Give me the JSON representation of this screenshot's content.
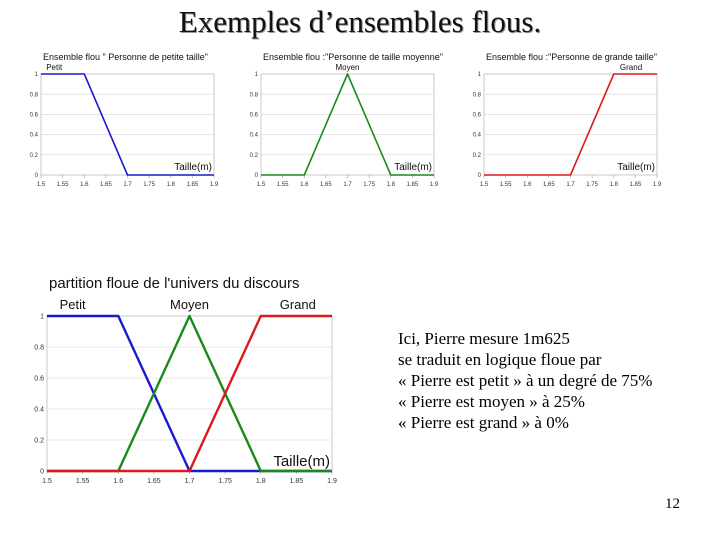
{
  "slide": {
    "title": "Exemples d’ensembles  flous.",
    "number": "12"
  },
  "explanation": {
    "lines": [
      "Ici, Pierre mesure 1m625",
      "se traduit en logique floue par",
      "« Pierre est petit » à un degré de 75%",
      "« Pierre est moyen » à 25%",
      "« Pierre est grand » à 0%"
    ]
  },
  "chart_data": [
    {
      "type": "line",
      "title": "Ensemble flou \" Personne de petite taille\"",
      "xlabel": "Taille(m)",
      "x_ticks": [
        "1.5",
        "1.55",
        "1.6",
        "1.65",
        "1.7",
        "1.75",
        "1.8",
        "1.85",
        "1.9"
      ],
      "y_ticks": [
        "0",
        "0.2",
        "0.4",
        "0.6",
        "0.8",
        "1"
      ],
      "xlim": [
        1.5,
        1.9
      ],
      "ylim": [
        0,
        1
      ],
      "series": [
        {
          "name": "Petit",
          "color": "#1a1acc",
          "x": [
            1.5,
            1.6,
            1.7,
            1.9
          ],
          "y": [
            1,
            1,
            0,
            0
          ]
        }
      ]
    },
    {
      "type": "line",
      "title": "Ensemble flou :\"Personne de taille moyenne\"",
      "xlabel": "Taille(m)",
      "x_ticks": [
        "1.5",
        "1.55",
        "1.6",
        "1.65",
        "1.7",
        "1.75",
        "1.8",
        "1.85",
        "1.9"
      ],
      "y_ticks": [
        "0",
        "0.2",
        "0.4",
        "0.6",
        "0.8",
        "1"
      ],
      "xlim": [
        1.5,
        1.9
      ],
      "ylim": [
        0,
        1
      ],
      "series": [
        {
          "name": "Moyen",
          "color": "#1a8a1a",
          "x": [
            1.5,
            1.6,
            1.7,
            1.8,
            1.9
          ],
          "y": [
            0,
            0,
            1,
            0,
            0
          ]
        }
      ]
    },
    {
      "type": "line",
      "title": "Ensemble flou :\"Personne de grande taille\"",
      "xlabel": "Taille(m)",
      "x_ticks": [
        "1.5",
        "1.55",
        "1.6",
        "1.65",
        "1.7",
        "1.75",
        "1.8",
        "1.85",
        "1.9"
      ],
      "y_ticks": [
        "0",
        "0.2",
        "0.4",
        "0.6",
        "0.8",
        "1"
      ],
      "xlim": [
        1.5,
        1.9
      ],
      "ylim": [
        0,
        1
      ],
      "series": [
        {
          "name": "Grand",
          "color": "#dd1a1a",
          "x": [
            1.5,
            1.7,
            1.8,
            1.9
          ],
          "y": [
            0,
            0,
            1,
            1
          ]
        }
      ]
    },
    {
      "type": "line",
      "title": "partition floue de l'univers du discours",
      "xlabel": "Taille(m)",
      "x_ticks": [
        "1.5",
        "1.55",
        "1.6",
        "1.65",
        "1.7",
        "1.75",
        "1.8",
        "1.85",
        "1.9"
      ],
      "y_ticks": [
        "0",
        "0.2",
        "0.4",
        "0.6",
        "0.8",
        "1"
      ],
      "xlim": [
        1.5,
        1.9
      ],
      "ylim": [
        0,
        1
      ],
      "series": [
        {
          "name": "Petit",
          "color": "#1a1acc",
          "x": [
            1.5,
            1.6,
            1.7,
            1.9
          ],
          "y": [
            1,
            1,
            0,
            0
          ]
        },
        {
          "name": "Moyen",
          "color": "#1a8a1a",
          "x": [
            1.5,
            1.6,
            1.7,
            1.8,
            1.9
          ],
          "y": [
            0,
            0,
            1,
            0,
            0
          ]
        },
        {
          "name": "Grand",
          "color": "#dd1a1a",
          "x": [
            1.5,
            1.7,
            1.8,
            1.9
          ],
          "y": [
            0,
            0,
            1,
            1
          ]
        }
      ]
    }
  ]
}
